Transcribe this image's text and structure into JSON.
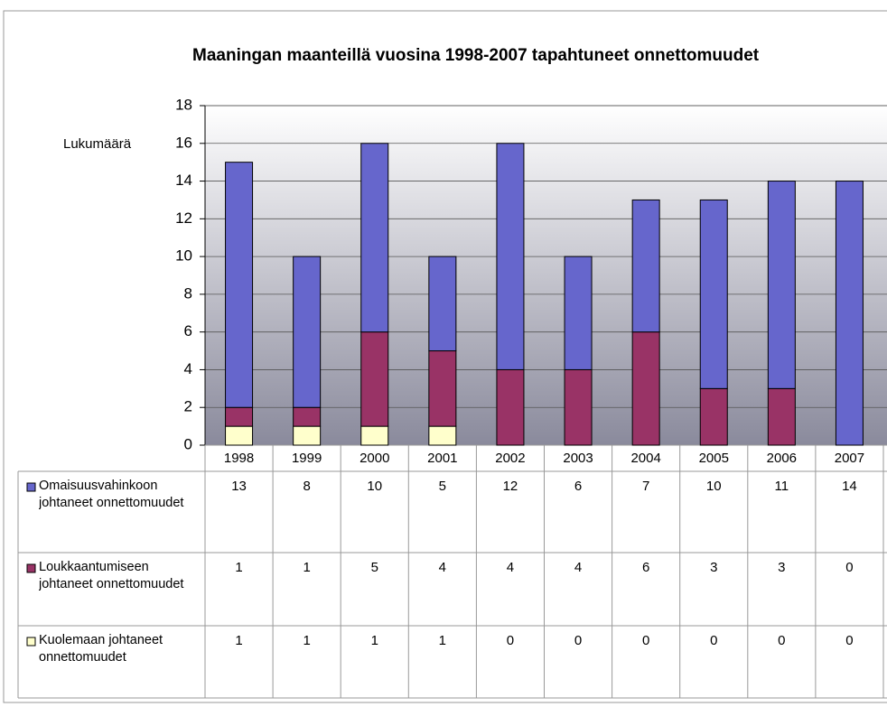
{
  "chart_data": {
    "type": "stacked-bar",
    "title": "Maaningan maanteillä vuosina 1998-2007 tapahtuneet onnettomuudet",
    "y_label": "Lukumäärä",
    "categories": [
      "1998",
      "1999",
      "2000",
      "2001",
      "2002",
      "2003",
      "2004",
      "2005",
      "2006",
      "2007"
    ],
    "series": [
      {
        "name": "Omaisuusvahinkoon johtaneet onnettomuudet",
        "color": "#6666cc",
        "values": [
          13,
          8,
          10,
          5,
          12,
          6,
          7,
          10,
          11,
          14
        ]
      },
      {
        "name": "Loukkaantumiseen johtaneet onnettomuudet",
        "color": "#993366",
        "values": [
          1,
          1,
          5,
          4,
          4,
          4,
          6,
          3,
          3,
          0
        ]
      },
      {
        "name": "Kuolemaan johtaneet onnettomuudet",
        "color": "#ffffcc",
        "values": [
          1,
          1,
          1,
          1,
          0,
          0,
          0,
          0,
          0,
          0
        ]
      }
    ],
    "ylim": [
      0,
      18
    ],
    "yticks": [
      0,
      2,
      4,
      6,
      8,
      10,
      12,
      14,
      16,
      18
    ],
    "grid": true,
    "data_table": true
  }
}
